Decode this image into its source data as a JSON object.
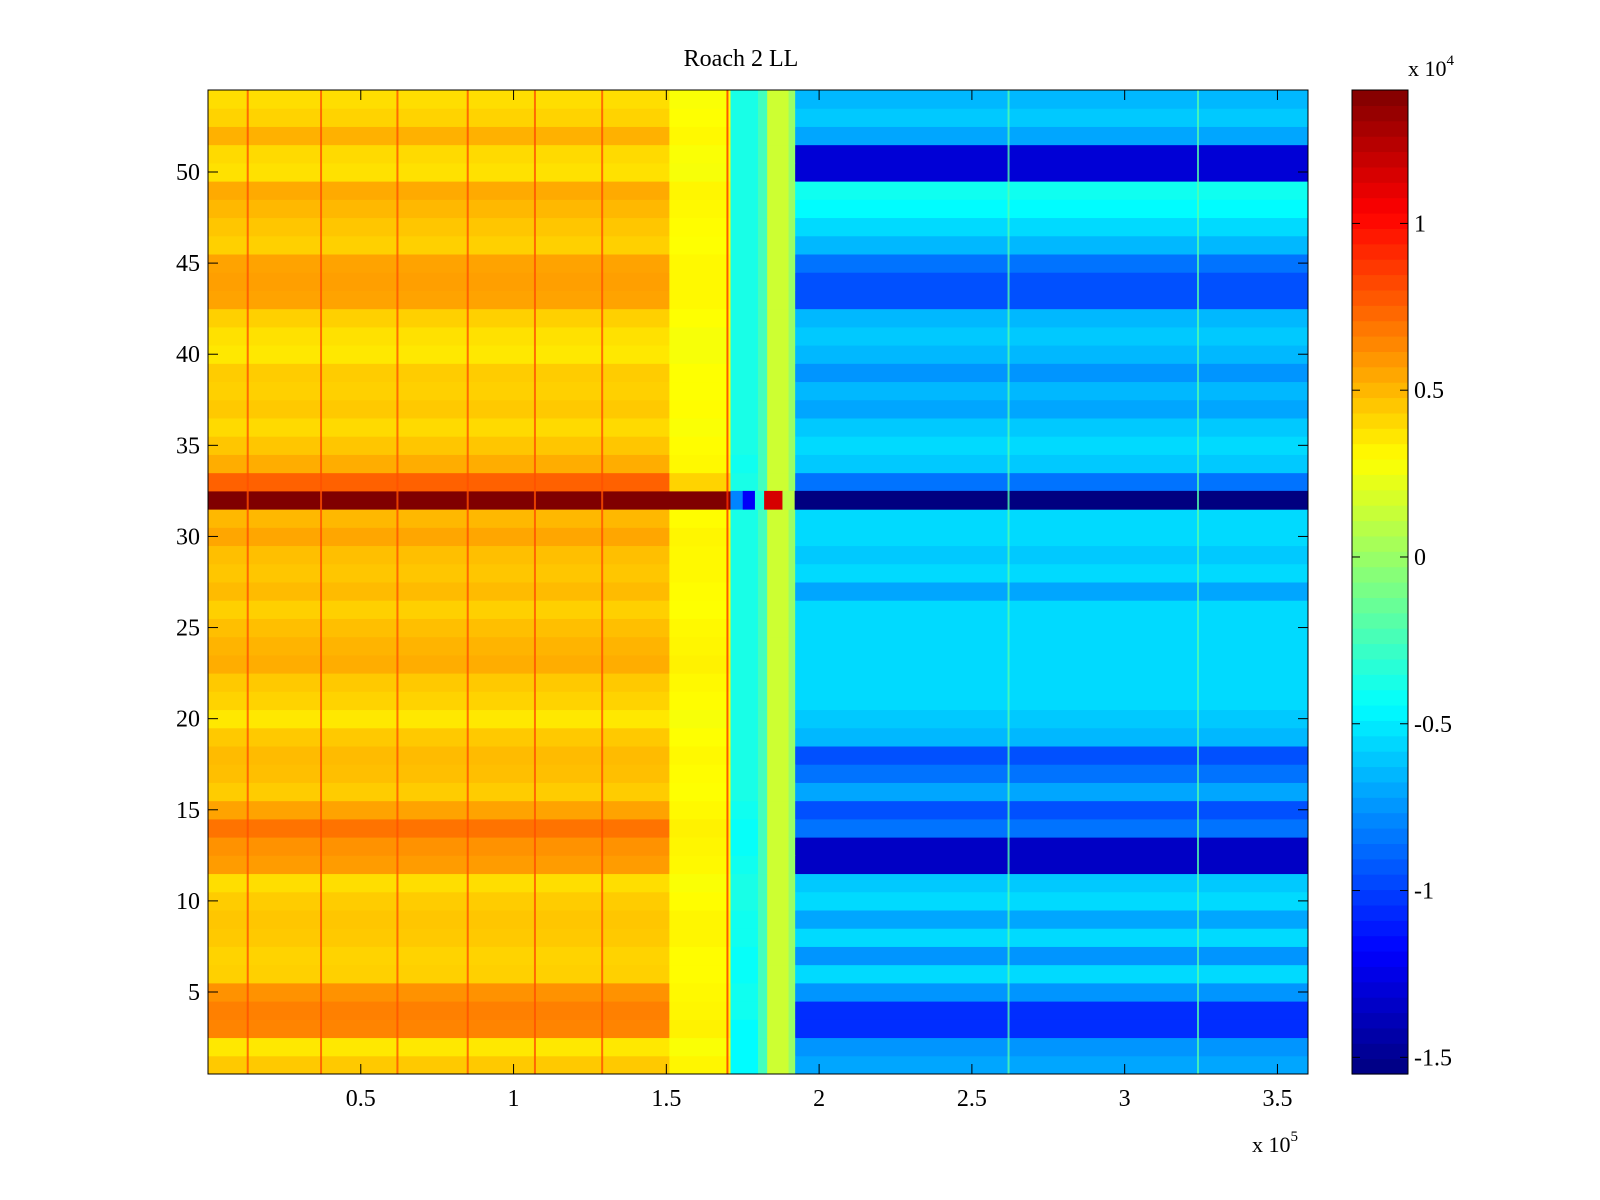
{
  "chart_data": [
    {
      "type": "heatmap",
      "title": "Roach 2 LL",
      "xlabel": "",
      "ylabel": "",
      "x_exponent_label": "x 10",
      "x_exponent": "5",
      "xlim": [
        0,
        3.6
      ],
      "ylim": [
        0.5,
        54.5
      ],
      "xticks": [
        0.5,
        1,
        1.5,
        2,
        2.5,
        3,
        3.5
      ],
      "xtick_labels": [
        "0.5",
        "1",
        "1.5",
        "2",
        "2.5",
        "3",
        "3.5"
      ],
      "yticks": [
        5,
        10,
        15,
        20,
        25,
        30,
        35,
        40,
        45,
        50
      ],
      "ytick_labels": [
        "5",
        "10",
        "15",
        "20",
        "25",
        "30",
        "35",
        "40",
        "45",
        "50"
      ],
      "colormap": "jet",
      "x_regions": [
        {
          "x_start": 0,
          "x_end": 1.51,
          "label": "region-1"
        },
        {
          "x_start": 1.51,
          "x_end": 1.71,
          "label": "region-2"
        },
        {
          "x_start": 1.71,
          "x_end": 1.92,
          "label": "transition"
        },
        {
          "x_start": 1.92,
          "x_end": 3.6,
          "label": "region-3"
        }
      ],
      "row_values": {
        "region-1": [
          4500,
          3600,
          6500,
          6600,
          6100,
          4300,
          4200,
          4500,
          4600,
          4400,
          3900,
          5800,
          6100,
          7000,
          5600,
          4400,
          4800,
          4900,
          4500,
          3600,
          4200,
          4500,
          5300,
          5100,
          4800,
          4300,
          4900,
          4600,
          4800,
          5500,
          5000,
          14000,
          7500,
          5300,
          4600,
          4000,
          4500,
          4300,
          4400,
          3600,
          3800,
          4300,
          5600,
          5700,
          5600,
          4300,
          4600,
          5000,
          5400,
          3800,
          4000,
          5200,
          4200,
          3900
        ],
        "region-2": [
          3200,
          2800,
          3300,
          3200,
          3100,
          3000,
          3000,
          3200,
          3200,
          3000,
          2800,
          3100,
          3200,
          3300,
          3100,
          2900,
          3000,
          3100,
          2900,
          2700,
          3000,
          3100,
          3300,
          3200,
          3100,
          2900,
          3000,
          3100,
          3100,
          3200,
          3000,
          14000,
          4200,
          3100,
          3000,
          2800,
          3000,
          2900,
          2900,
          2700,
          2700,
          2900,
          3100,
          3100,
          3100,
          2900,
          3000,
          3100,
          3200,
          2700,
          2800,
          3100,
          2900,
          2800
        ],
        "region-3": [
          -7000,
          -7500,
          -10500,
          -10500,
          -7500,
          -5500,
          -7500,
          -5500,
          -7000,
          -5500,
          -6000,
          -13500,
          -13500,
          -8500,
          -9500,
          -7000,
          -8500,
          -9500,
          -6500,
          -6000,
          -5500,
          -5500,
          -5500,
          -5500,
          -5500,
          -5500,
          -7000,
          -5500,
          -6000,
          -5500,
          -5500,
          -14500,
          -8500,
          -6000,
          -5500,
          -6000,
          -7000,
          -6500,
          -7500,
          -6500,
          -6000,
          -6500,
          -9500,
          -9500,
          -8500,
          -6500,
          -5500,
          -4500,
          -4000,
          -13000,
          -13000,
          -7000,
          -6000,
          -6500
        ],
        "transition": [
          -4500,
          -4500,
          -4500,
          -3500,
          -3500,
          -4000,
          -4000,
          -3500,
          -3500,
          -3000,
          -3000,
          -3500,
          -4000,
          -4000,
          -3500,
          -3000,
          -3000,
          -3000,
          -3000,
          -3000,
          -3000,
          -3000,
          -3000,
          -3000,
          -3000,
          -3000,
          -3000,
          -3000,
          -3000,
          -3000,
          -3000,
          -8500,
          -3000,
          -3500,
          -3000,
          -3000,
          -3000,
          -3000,
          -3000,
          -3000,
          -3000,
          -3000,
          -3000,
          -3000,
          -3000,
          -3000,
          -3000,
          -3000,
          -3000,
          -3000,
          -3000,
          -3000,
          -3000,
          -3000
        ]
      },
      "row32_special": [
        {
          "x_start": 1.71,
          "x_end": 1.75,
          "value": -8000
        },
        {
          "x_start": 1.75,
          "x_end": 1.79,
          "value": -12000
        },
        {
          "x_start": 1.79,
          "x_end": 1.82,
          "value": -3500
        },
        {
          "x_start": 1.82,
          "x_end": 1.88,
          "value": 11500
        },
        {
          "x_start": 1.88,
          "x_end": 1.92,
          "value": 1000
        },
        {
          "x_start": 1.92,
          "x_end": 3.6,
          "value": -15500
        }
      ],
      "transition_subcolumns": [
        {
          "x_start": 1.71,
          "x_end": 1.8,
          "value": -4500
        },
        {
          "x_start": 1.8,
          "x_end": 1.83,
          "value": -2500
        },
        {
          "x_start": 1.83,
          "x_end": 1.9,
          "value": 1500
        },
        {
          "x_start": 1.9,
          "x_end": 1.92,
          "value": 0
        }
      ],
      "vertical_streaks": [
        {
          "x": 0.13,
          "value": 8000
        },
        {
          "x": 0.37,
          "value": 8000
        },
        {
          "x": 0.62,
          "value": 8000
        },
        {
          "x": 0.85,
          "value": 8000
        },
        {
          "x": 1.07,
          "value": 8000
        },
        {
          "x": 1.29,
          "value": 8000
        },
        {
          "x": 1.7,
          "value": 9000
        },
        {
          "x": 2.62,
          "value": -2000
        },
        {
          "x": 3.24,
          "value": -2000
        }
      ],
      "colorbar": {
        "clim": [
          -15500,
          14000
        ],
        "exponent_label": "x 10",
        "exponent": "4",
        "ticks": [
          -1.5,
          -1,
          -0.5,
          0,
          0.5,
          1
        ],
        "tick_labels": [
          "-1.5",
          "-1",
          "-0.5",
          "0",
          "0.5",
          "1"
        ]
      }
    }
  ]
}
